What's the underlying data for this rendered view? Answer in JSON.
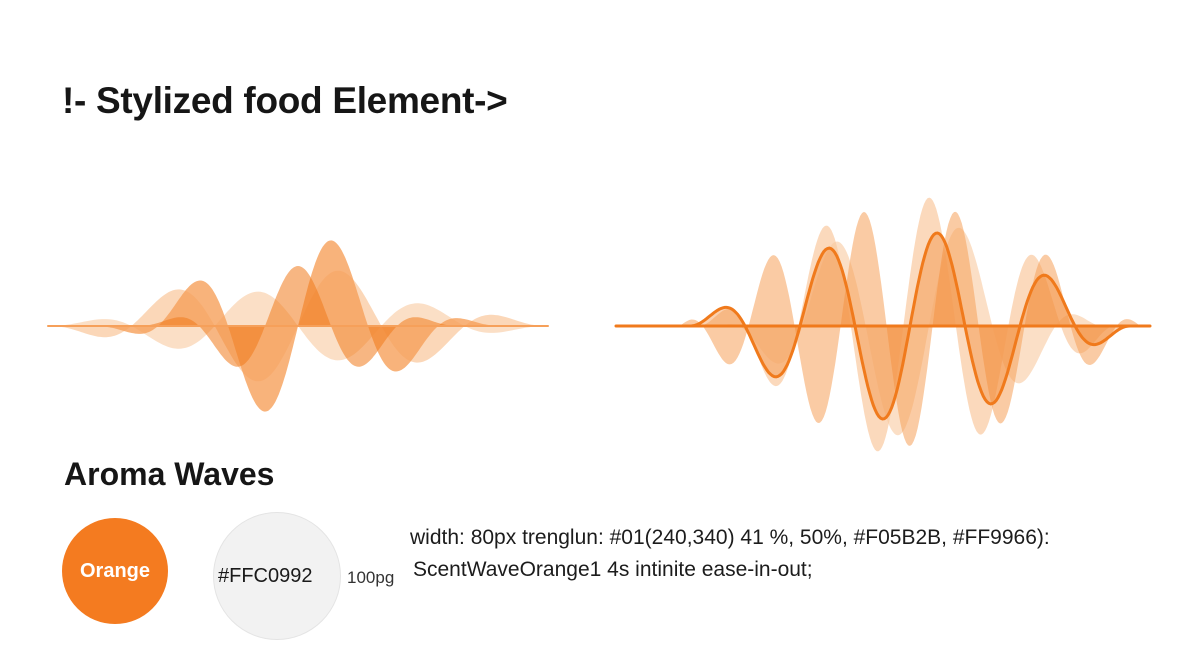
{
  "header": {
    "title": "!- Stylized food Element->"
  },
  "section": {
    "title": "Aroma Waves"
  },
  "palette": {
    "primary": {
      "label": "Orange",
      "color": "#f47b20"
    },
    "secondary": {
      "hex_label": "#FFC0992",
      "size_label": "100pg",
      "color": "#f2f2f2"
    }
  },
  "code": {
    "line1": "width: 80px trenglun: #01(240,340) 41 %, 50%, #F05B2B, #FF9966):",
    "line2": "ScentWaveOrange1 4s intinite ease-in-out;"
  },
  "colors": {
    "wave_dark": "#f07a1c",
    "wave_mid": "#f6a05a",
    "wave_light": "#f9c9a0"
  }
}
